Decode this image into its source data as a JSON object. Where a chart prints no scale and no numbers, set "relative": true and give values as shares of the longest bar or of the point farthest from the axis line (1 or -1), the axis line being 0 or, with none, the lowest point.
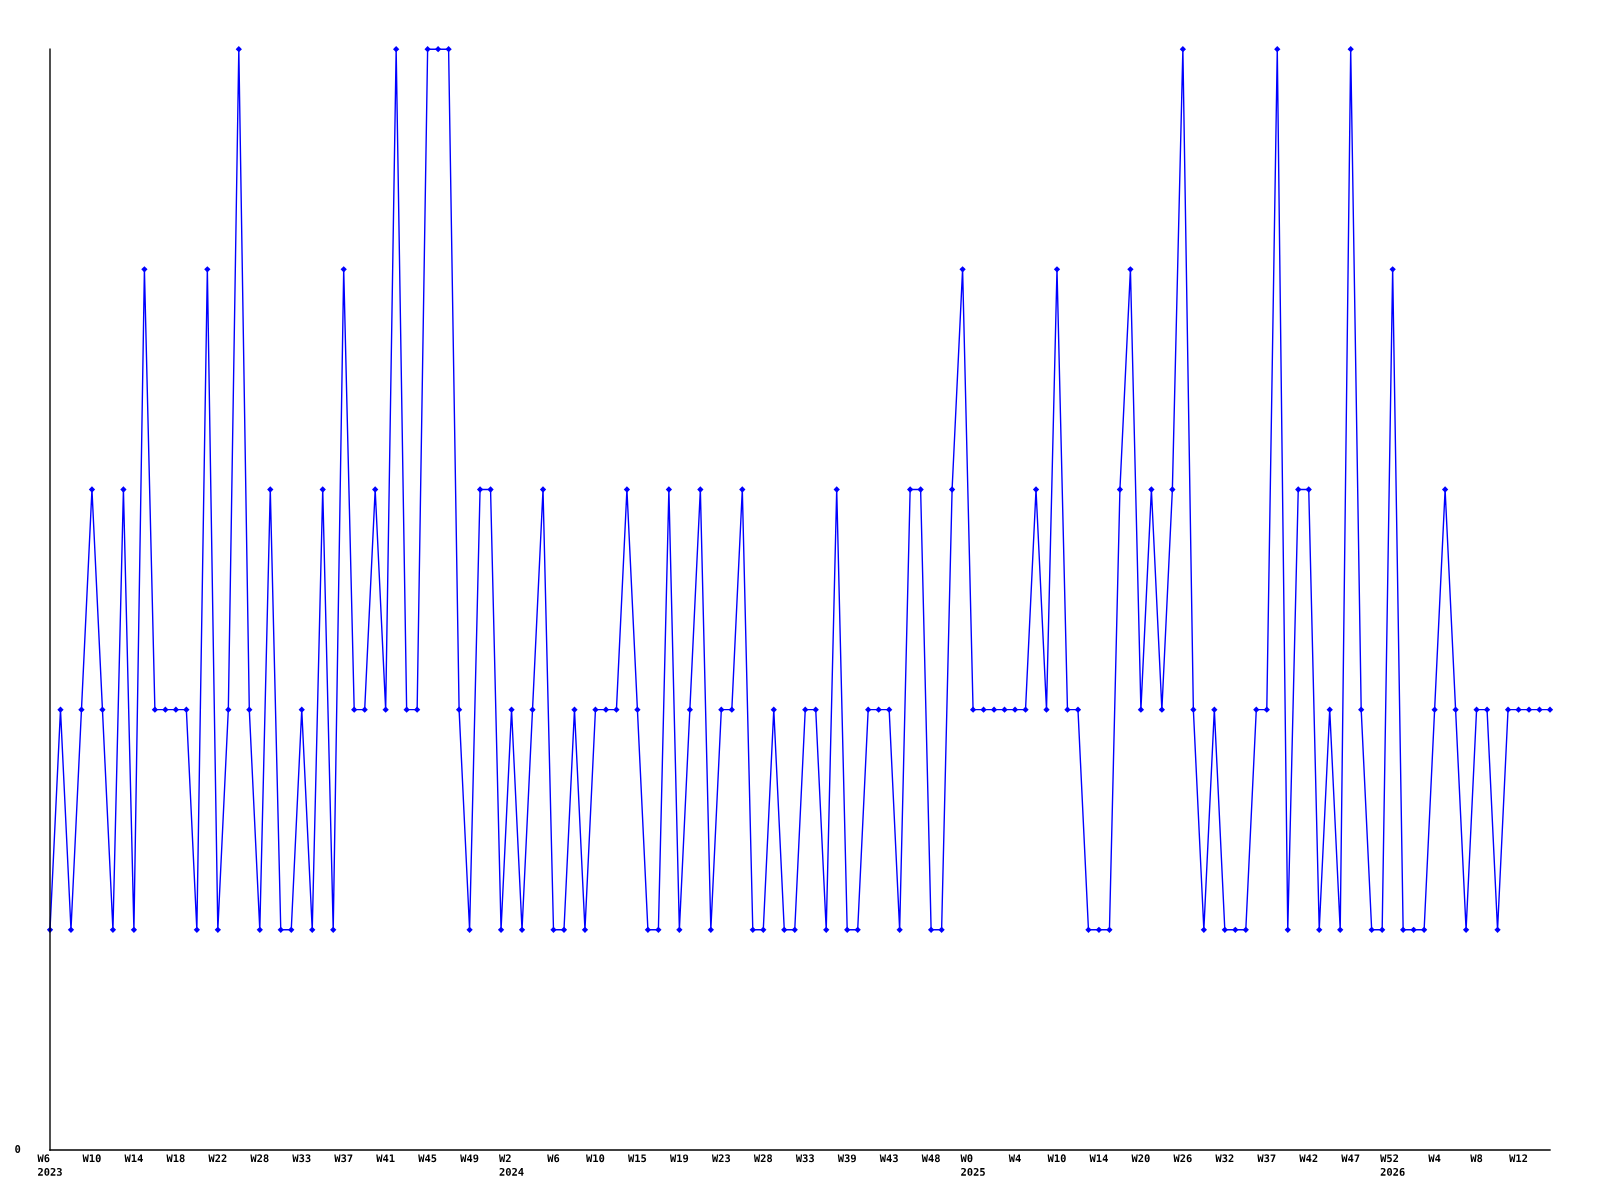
{
  "chart_data": {
    "type": "line",
    "relative": true,
    "marker": "diamond",
    "line_style": "solid",
    "annotations": [
      "0"
    ],
    "categories": [
      "W6\n2023",
      null,
      null,
      null,
      "W10",
      null,
      null,
      null,
      "W14",
      null,
      null,
      null,
      "W18",
      null,
      null,
      null,
      "W22",
      null,
      null,
      null,
      "W28",
      null,
      null,
      null,
      "W33",
      null,
      null,
      null,
      "W37",
      null,
      null,
      null,
      "W41",
      null,
      null,
      null,
      "W45",
      null,
      null,
      null,
      "W49",
      null,
      null,
      null,
      "W2\n2024",
      null,
      null,
      null,
      "W6",
      null,
      null,
      null,
      "W10",
      null,
      null,
      null,
      "W15",
      null,
      null,
      null,
      "W19",
      null,
      null,
      null,
      "W23",
      null,
      null,
      null,
      "W28",
      null,
      null,
      null,
      "W33",
      null,
      null,
      null,
      "W39",
      null,
      null,
      null,
      "W43",
      null,
      null,
      null,
      "W48",
      null,
      null,
      null,
      "W0\n2025",
      null,
      null,
      null,
      "W4",
      null,
      null,
      null,
      "W10",
      null,
      null,
      null,
      "W14",
      null,
      null,
      null,
      "W20",
      null,
      null,
      null,
      "W26",
      null,
      null,
      null,
      "W32",
      null,
      null,
      null,
      "W37",
      null,
      null,
      null,
      "W42",
      null,
      null,
      null,
      "W47",
      null,
      null,
      null,
      "W52\n2026",
      null,
      null,
      null,
      "W4",
      null,
      null,
      null,
      "W8",
      null,
      null,
      null,
      "W12",
      null,
      null,
      null
    ],
    "series": [
      {
        "color": "#0000ff",
        "values": [
          0.2,
          0.4,
          0.2,
          0.4,
          0.6,
          0.4,
          0.2,
          0.6,
          0.2,
          0.8,
          0.4,
          0.4,
          0.4,
          0.4,
          0.2,
          0.8,
          0.2,
          0.4,
          1,
          0.4,
          0.2,
          0.6,
          0.2,
          0.2,
          0.4,
          0.2,
          0.6,
          0.2,
          0.8,
          0.4,
          0.4,
          0.6,
          0.4,
          1,
          0.4,
          0.4,
          1,
          1,
          1,
          0.4,
          0.2,
          0.6,
          0.6,
          0.2,
          0.4,
          0.2,
          0.4,
          0.6,
          0.2,
          0.2,
          0.4,
          0.2,
          0.4,
          0.4,
          0.4,
          0.6,
          0.4,
          0.2,
          0.2,
          0.6,
          0.2,
          0.4,
          0.6,
          0.2,
          0.4,
          0.4,
          0.6,
          0.2,
          0.2,
          0.4,
          0.2,
          0.2,
          0.4,
          0.4,
          0.2,
          0.6,
          0.2,
          0.2,
          0.4,
          0.4,
          0.4,
          0.2,
          0.6,
          0.6,
          0.2,
          0.2,
          0.6,
          0.8,
          0.4,
          0.4,
          0.4,
          0.4,
          0.4,
          0.4,
          0.6,
          0.4,
          0.8,
          0.4,
          0.4,
          0.2,
          0.2,
          0.2,
          0.6,
          0.8,
          0.4,
          0.6,
          0.4,
          0.6,
          1,
          0.4,
          0.2,
          0.4,
          0.2,
          0.2,
          0.2,
          0.4,
          0.4,
          1,
          0.2,
          0.6,
          0.6,
          0.2,
          0.4,
          0.2,
          1,
          0.4,
          0.2,
          0.2,
          0.8,
          0.2,
          0.2,
          0.2,
          0.4,
          0.6,
          0.4,
          0.2,
          0.4,
          0.4,
          0.2,
          0.4,
          0.4,
          0.4,
          0.4,
          0.4
        ]
      }
    ]
  }
}
